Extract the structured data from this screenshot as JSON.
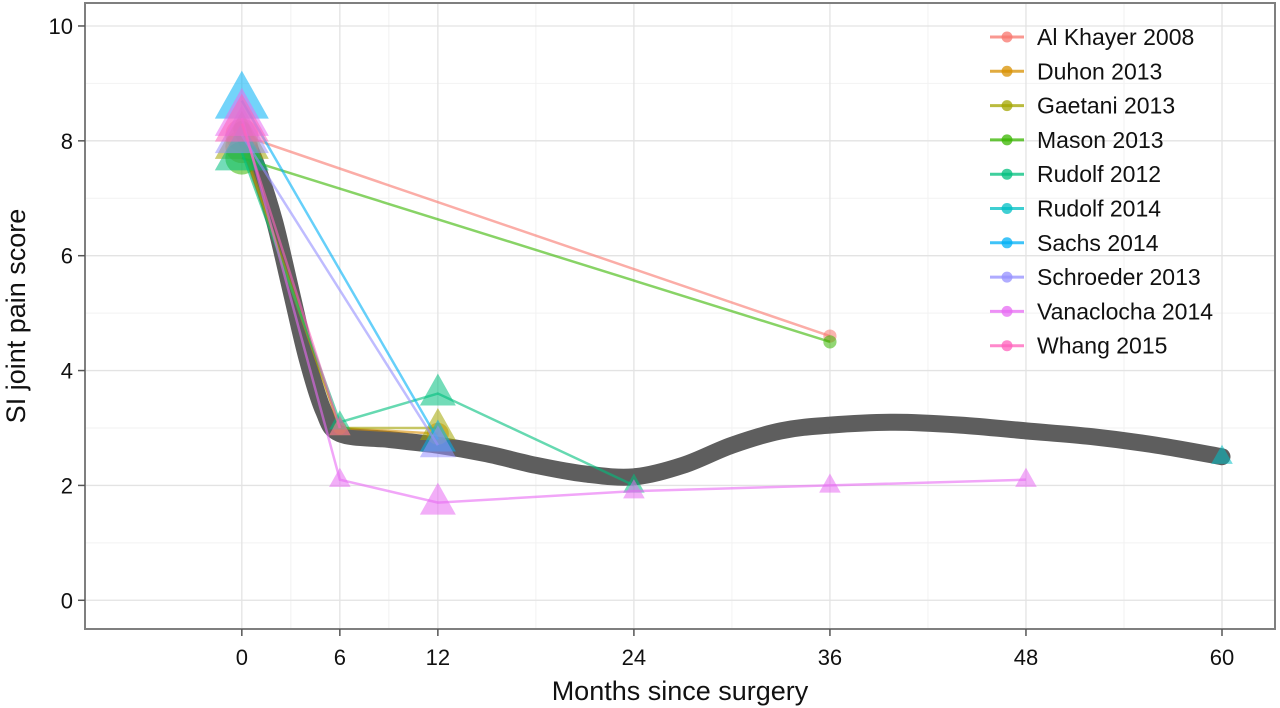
{
  "chart_data": {
    "type": "line",
    "xlabel": "Months since surgery",
    "ylabel": "SI joint pain score",
    "xlim": [
      -9.6,
      60
    ],
    "ylim": [
      -0.5,
      10.4
    ],
    "x_ticks": [
      0,
      6,
      12,
      24,
      36,
      48,
      60
    ],
    "x_tick_labels": [
      "0",
      "6",
      "12",
      "24",
      "36",
      "48",
      "60"
    ],
    "y_ticks": [
      0,
      2,
      4,
      6,
      8,
      10
    ],
    "y_tick_labels": [
      "0",
      "2",
      "4",
      "6",
      "8",
      "10"
    ],
    "grid": true,
    "legend_position": "top-right",
    "series": [
      {
        "name": "Al Khayer 2008",
        "color": "#F8766D",
        "marker": "circle",
        "points": [
          {
            "x": 0,
            "y": 8.1
          },
          {
            "x": 36,
            "y": 4.6
          }
        ]
      },
      {
        "name": "Duhon 2013",
        "color": "#D89000",
        "marker": "circle",
        "points": [
          {
            "x": 0,
            "y": 7.9
          },
          {
            "x": 6,
            "y": 3.0
          },
          {
            "x": 12,
            "y": 2.9
          }
        ]
      },
      {
        "name": "Gaetani 2013",
        "color": "#A3A500",
        "marker": "triangle",
        "points": [
          {
            "x": 0,
            "y": 8.0
          },
          {
            "x": 6,
            "y": 3.0
          },
          {
            "x": 12,
            "y": 3.0
          }
        ]
      },
      {
        "name": "Mason 2013",
        "color": "#39B600",
        "marker": "circle",
        "points": [
          {
            "x": 0,
            "y": 7.7
          },
          {
            "x": 36,
            "y": 4.5
          }
        ]
      },
      {
        "name": "Rudolf 2012",
        "color": "#00BF7D",
        "marker": "triangle",
        "points": [
          {
            "x": 0,
            "y": 7.8
          },
          {
            "x": 6,
            "y": 3.1
          },
          {
            "x": 12,
            "y": 3.6
          },
          {
            "x": 24,
            "y": 2.0
          }
        ]
      },
      {
        "name": "Rudolf 2014",
        "color": "#00BFC4",
        "marker": "triangle",
        "points": [
          {
            "x": 60,
            "y": 2.5
          }
        ]
      },
      {
        "name": "Sachs 2014",
        "color": "#00B0F6",
        "marker": "triangle",
        "points": [
          {
            "x": 0,
            "y": 8.7
          },
          {
            "x": 12,
            "y": 2.8
          }
        ]
      },
      {
        "name": "Schroeder 2013",
        "color": "#9590FF",
        "marker": "triangle",
        "points": [
          {
            "x": 0,
            "y": 8.1
          },
          {
            "x": 12,
            "y": 2.7
          }
        ]
      },
      {
        "name": "Vanaclocha 2014",
        "color": "#E76BF3",
        "marker": "triangle",
        "points": [
          {
            "x": 0,
            "y": 8.4
          },
          {
            "x": 6,
            "y": 2.1
          },
          {
            "x": 12,
            "y": 1.7
          },
          {
            "x": 24,
            "y": 1.9
          },
          {
            "x": 36,
            "y": 2.0
          },
          {
            "x": 48,
            "y": 2.1
          }
        ]
      },
      {
        "name": "Whang 2015",
        "color": "#FF62BC",
        "marker": "triangle",
        "points": [
          {
            "x": 0,
            "y": 8.3
          },
          {
            "x": 6,
            "y": 3.0
          }
        ]
      }
    ],
    "smooth_curve": {
      "color": "#555555",
      "points": [
        {
          "x": 0,
          "y": 8.2
        },
        {
          "x": 1,
          "y": 7.5
        },
        {
          "x": 2,
          "y": 6.6
        },
        {
          "x": 3,
          "y": 5.4
        },
        {
          "x": 4,
          "y": 4.2
        },
        {
          "x": 5,
          "y": 3.3
        },
        {
          "x": 6,
          "y": 2.9
        },
        {
          "x": 9,
          "y": 2.8
        },
        {
          "x": 12,
          "y": 2.7
        },
        {
          "x": 15,
          "y": 2.55
        },
        {
          "x": 18,
          "y": 2.35
        },
        {
          "x": 21,
          "y": 2.2
        },
        {
          "x": 24,
          "y": 2.15
        },
        {
          "x": 27,
          "y": 2.35
        },
        {
          "x": 30,
          "y": 2.7
        },
        {
          "x": 33,
          "y": 2.95
        },
        {
          "x": 36,
          "y": 3.05
        },
        {
          "x": 40,
          "y": 3.1
        },
        {
          "x": 44,
          "y": 3.05
        },
        {
          "x": 48,
          "y": 2.95
        },
        {
          "x": 52,
          "y": 2.85
        },
        {
          "x": 56,
          "y": 2.7
        },
        {
          "x": 60,
          "y": 2.5
        }
      ]
    }
  }
}
